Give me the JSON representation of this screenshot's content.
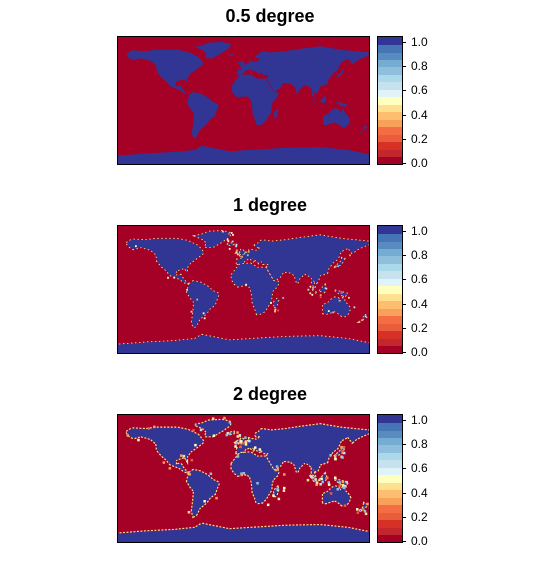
{
  "chart_data": [
    {
      "type": "heatmap",
      "title": "0.5 degree",
      "xlabel": "",
      "ylabel": "",
      "xlim": [
        -180,
        180
      ],
      "ylim": [
        -90,
        90
      ],
      "zlim": [
        0,
        1.05
      ],
      "colorbar": {
        "ticks": [
          "0.0",
          "0.2",
          "0.4",
          "0.6",
          "0.8",
          "1.0"
        ],
        "colors": [
          "#a50026",
          "#c1272d",
          "#d73027",
          "#e95d3b",
          "#f46d43",
          "#f9a05a",
          "#fdbf6f",
          "#fee090",
          "#ffffbf",
          "#e0f3f8",
          "#c6e2ef",
          "#abd9e9",
          "#8fbfdc",
          "#74add1",
          "#5a8bc0",
          "#4575b4",
          "#313695"
        ]
      },
      "land_value": 1.0,
      "ocean_value": 0.0,
      "coast_noise": 0.0
    },
    {
      "type": "heatmap",
      "title": "1 degree",
      "xlabel": "",
      "ylabel": "",
      "xlim": [
        -180,
        180
      ],
      "ylim": [
        -90,
        90
      ],
      "zlim": [
        0,
        1.05
      ],
      "colorbar": {
        "ticks": [
          "0.0",
          "0.2",
          "0.4",
          "0.6",
          "0.8",
          "1.0"
        ],
        "colors": [
          "#a50026",
          "#c1272d",
          "#d73027",
          "#e95d3b",
          "#f46d43",
          "#f9a05a",
          "#fdbf6f",
          "#fee090",
          "#ffffbf",
          "#e0f3f8",
          "#c6e2ef",
          "#abd9e9",
          "#8fbfdc",
          "#74add1",
          "#5a8bc0",
          "#4575b4",
          "#313695"
        ]
      },
      "land_value": 1.0,
      "ocean_value": 0.0,
      "coast_noise": 0.35
    },
    {
      "type": "heatmap",
      "title": "2 degree",
      "xlabel": "",
      "ylabel": "",
      "xlim": [
        -180,
        180
      ],
      "ylim": [
        -90,
        90
      ],
      "zlim": [
        0,
        1.05
      ],
      "colorbar": {
        "ticks": [
          "0.0",
          "0.2",
          "0.4",
          "0.6",
          "0.8",
          "1.0"
        ],
        "colors": [
          "#a50026",
          "#c1272d",
          "#d73027",
          "#e95d3b",
          "#f46d43",
          "#f9a05a",
          "#fdbf6f",
          "#fee090",
          "#ffffbf",
          "#e0f3f8",
          "#c6e2ef",
          "#abd9e9",
          "#8fbfdc",
          "#74add1",
          "#5a8bc0",
          "#4575b4",
          "#313695"
        ]
      },
      "land_value": 1.0,
      "ocean_value": 0.0,
      "coast_noise": 0.7
    }
  ]
}
